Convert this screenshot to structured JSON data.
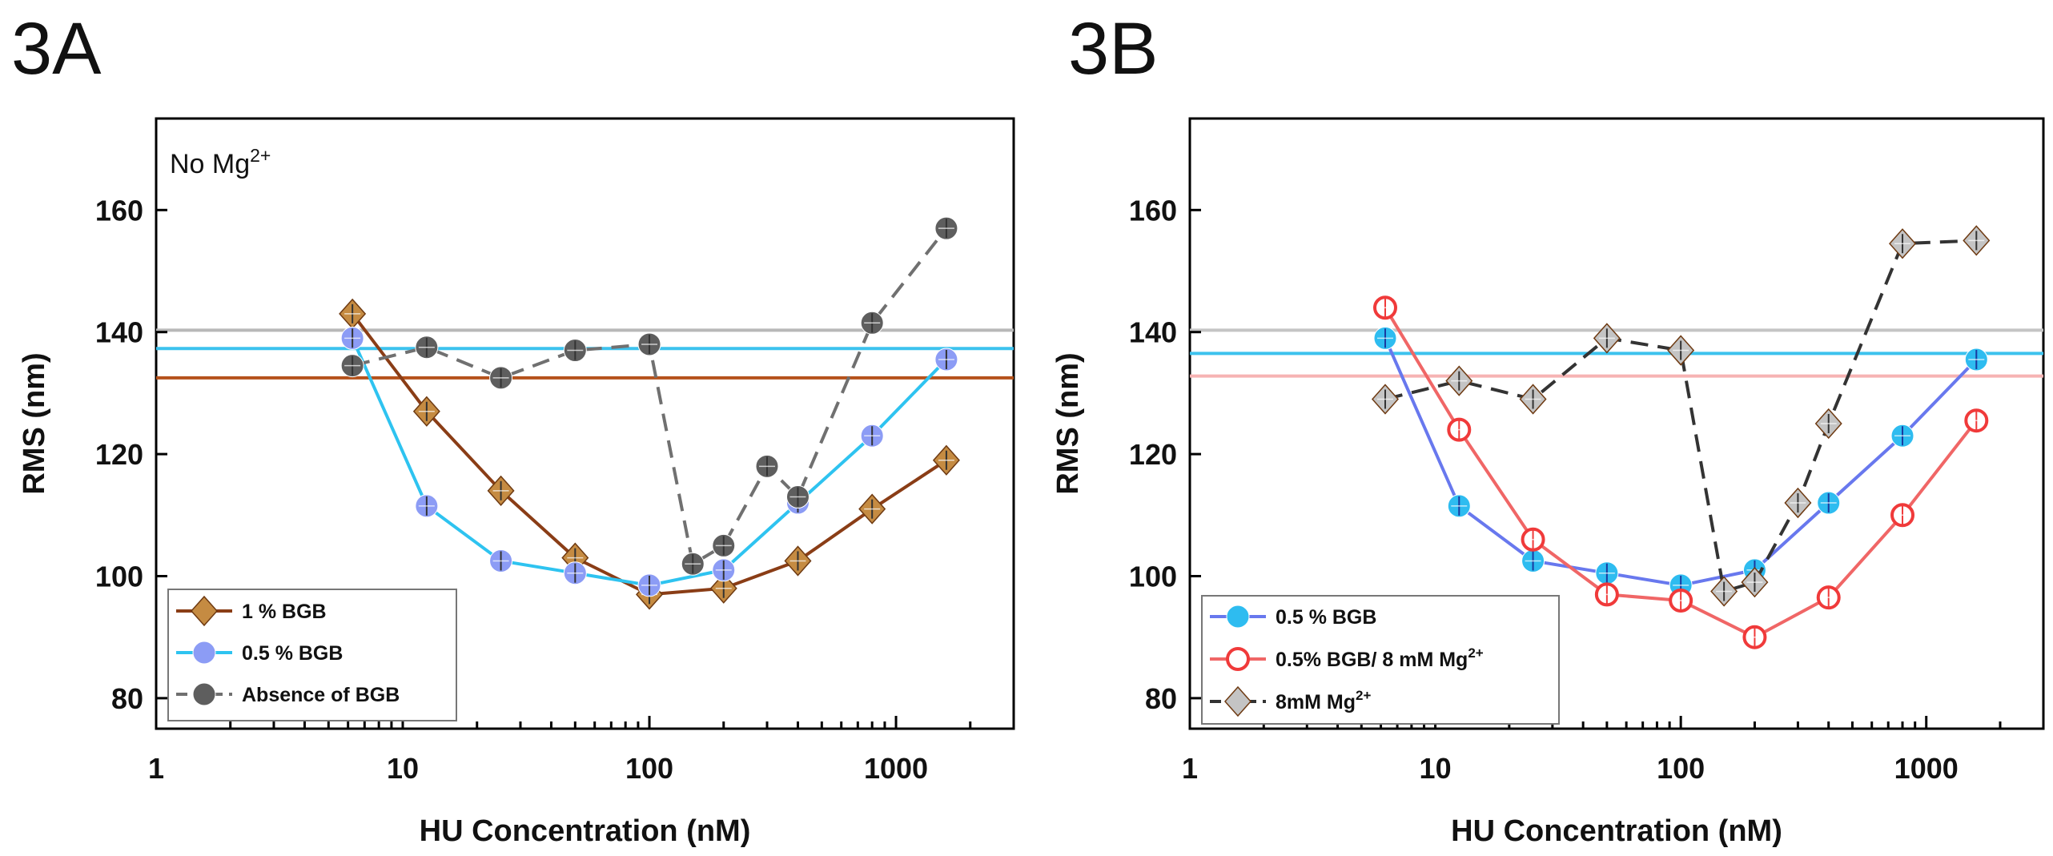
{
  "chart_data": [
    {
      "panel_label": "3A",
      "type": "line",
      "xlabel": "HU Concentration (nM)",
      "ylabel": "RMS (nm)",
      "xscale": "log",
      "xlim": [
        1,
        3000
      ],
      "ylim": [
        75,
        175
      ],
      "x_ticks": [
        1,
        10,
        100,
        1000
      ],
      "y_ticks": [
        80,
        100,
        120,
        140,
        160
      ],
      "annotation": {
        "prefix": "No Mg",
        "sup": "2+"
      },
      "legend_position": "bottom-left",
      "reference_lines": [
        {
          "y": 140.3,
          "color": "#b8b8b8"
        },
        {
          "y": 137.3,
          "color": "#3cc2ee"
        },
        {
          "y": 132.5,
          "color": "#b5521b"
        }
      ],
      "series": [
        {
          "name": "1 % BGB",
          "color": "#8a3d16",
          "marker_color": "#c58b42",
          "marker": "diamond",
          "dashed": false,
          "x": [
            6.25,
            12.5,
            25,
            50,
            100,
            200,
            400,
            800,
            1600
          ],
          "y": [
            143,
            127,
            114,
            103,
            97,
            98,
            102.5,
            111,
            119
          ]
        },
        {
          "name": "0.5 % BGB",
          "color": "#2ec3f0",
          "marker_color": "#8c9cf5",
          "marker": "circle",
          "dashed": false,
          "x": [
            6.25,
            12.5,
            25,
            50,
            100,
            200,
            400,
            800,
            1600
          ],
          "y": [
            139,
            111.5,
            102.5,
            100.5,
            98.5,
            101,
            112,
            123,
            135.5
          ]
        },
        {
          "name": "Absence of BGB",
          "color": "#707070",
          "marker_color": "#5e5e5e",
          "marker": "circle",
          "dashed": true,
          "x": [
            6.25,
            12.5,
            25,
            50,
            100,
            150,
            200,
            300,
            400,
            800,
            1600
          ],
          "y": [
            134.5,
            137.5,
            132.5,
            137,
            138,
            102,
            105,
            118,
            113,
            141.5,
            157
          ]
        }
      ]
    },
    {
      "panel_label": "3B",
      "type": "line",
      "xlabel": "HU Concentration (nM)",
      "ylabel": "RMS (nm)",
      "xscale": "log",
      "xlim": [
        1,
        3000
      ],
      "ylim": [
        75,
        175
      ],
      "x_ticks": [
        1,
        10,
        100,
        1000
      ],
      "y_ticks": [
        80,
        100,
        120,
        140,
        160
      ],
      "legend_position": "bottom-left",
      "reference_lines": [
        {
          "y": 140.3,
          "color": "#c4c4c4"
        },
        {
          "y": 136.5,
          "color": "#3cc2ee"
        },
        {
          "y": 132.8,
          "color": "#f6b3b3"
        }
      ],
      "series": [
        {
          "name": "0.5 % BGB",
          "color": "#6878ee",
          "marker_color": "#2ebcf0",
          "marker": "circle",
          "dashed": false,
          "x": [
            6.25,
            12.5,
            25,
            50,
            100,
            200,
            400,
            800,
            1600
          ],
          "y": [
            139,
            111.5,
            102.5,
            100.5,
            98.5,
            101,
            112,
            123,
            135.5
          ]
        },
        {
          "name": "0.5% BGB/ 8 mM Mg",
          "name_sup": "2+",
          "color": "#f06666",
          "marker_color": "#f03a3a",
          "marker": "open-circle",
          "dashed": false,
          "x": [
            6.25,
            12.5,
            25,
            50,
            100,
            200,
            400,
            800,
            1600
          ],
          "y": [
            144,
            124,
            106,
            97,
            96,
            90,
            96.5,
            110,
            125.5
          ]
        },
        {
          "name": "8mM Mg",
          "name_sup": "2+",
          "color": "#333333",
          "marker_color": "#c4c4c4",
          "marker": "diamond",
          "dashed": true,
          "x": [
            6.25,
            12.5,
            25,
            50,
            100,
            150,
            200,
            300,
            400,
            800,
            1600
          ],
          "y": [
            129,
            132,
            129,
            139,
            137,
            97.5,
            99,
            112,
            125,
            154.5,
            155
          ]
        }
      ]
    }
  ]
}
